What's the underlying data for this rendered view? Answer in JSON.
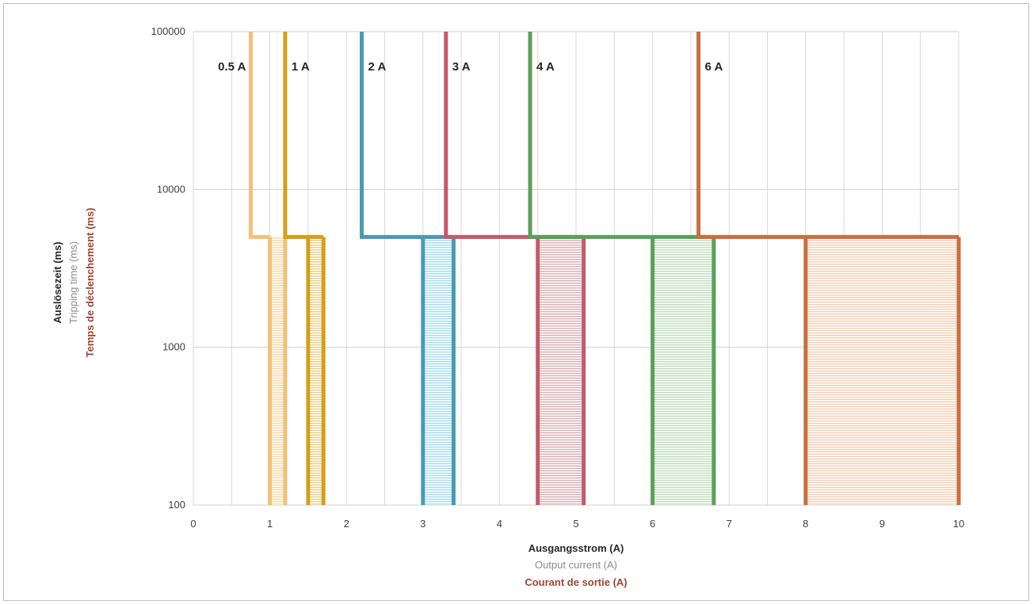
{
  "chart_data": {
    "type": "line",
    "title": "",
    "xlabel": [
      "Ausgangsstrom (A)",
      "Output current (A)",
      "Courant de sortie (A)"
    ],
    "ylabel": [
      "Auslösezeit (ms)",
      "Tripping time (ms)",
      "Temps de déclenchement (ms)"
    ],
    "xlim": [
      0,
      10
    ],
    "ylim": [
      100,
      100000
    ],
    "yscale": "log",
    "grid": true,
    "x_ticks": [
      "0",
      "1",
      "2",
      "3",
      "4",
      "5",
      "6",
      "7",
      "8",
      "9",
      "10"
    ],
    "y_ticks": [
      "100",
      "1000",
      "10000",
      "100000"
    ],
    "label_colors": {
      "de": "#262626",
      "en": "#8c8c8c",
      "fr": "#a04535"
    },
    "series": [
      {
        "name": "0.5 A",
        "color": "#f2c078",
        "hatch_color": "#f6d9a6",
        "trip_line": [
          [
            0.75,
            100000
          ],
          [
            0.75,
            5000
          ],
          [
            1.0,
            5000
          ]
        ],
        "band": {
          "x_min": 1.0,
          "x_max": 1.2,
          "y_min": 100,
          "y_max": 5000
        }
      },
      {
        "name": "1 A",
        "color": "#d4a017",
        "hatch_color": "#ead08a",
        "trip_line": [
          [
            1.2,
            100000
          ],
          [
            1.2,
            5000
          ],
          [
            1.7,
            5000
          ]
        ],
        "band": {
          "x_min": 1.5,
          "x_max": 1.7,
          "y_min": 100,
          "y_max": 5000
        }
      },
      {
        "name": "2 A",
        "color": "#4a9ab3",
        "hatch_color": "#a8dcf0",
        "trip_line": [
          [
            2.2,
            100000
          ],
          [
            2.2,
            5000
          ],
          [
            3.4,
            5000
          ]
        ],
        "band": {
          "x_min": 3.0,
          "x_max": 3.4,
          "y_min": 100,
          "y_max": 5000
        }
      },
      {
        "name": "3 A",
        "color": "#c45a6a",
        "hatch_color": "#dcb0b6",
        "trip_line": [
          [
            3.3,
            100000
          ],
          [
            3.3,
            5000
          ],
          [
            5.1,
            5000
          ]
        ],
        "band": {
          "x_min": 4.5,
          "x_max": 5.1,
          "y_min": 100,
          "y_max": 5000
        }
      },
      {
        "name": "4 A",
        "color": "#5aa05a",
        "hatch_color": "#c2dcbc",
        "trip_line": [
          [
            4.4,
            100000
          ],
          [
            4.4,
            5000
          ],
          [
            6.8,
            5000
          ]
        ],
        "band": {
          "x_min": 6.0,
          "x_max": 6.8,
          "y_min": 100,
          "y_max": 5000
        }
      },
      {
        "name": "6 A",
        "color": "#c8703e",
        "hatch_color": "#f3cfb6",
        "trip_line": [
          [
            6.6,
            100000
          ],
          [
            6.6,
            5000
          ],
          [
            10.0,
            5000
          ]
        ],
        "band": {
          "x_min": 8.0,
          "x_max": 10.0,
          "y_min": 100,
          "y_max": 5000
        }
      }
    ]
  }
}
